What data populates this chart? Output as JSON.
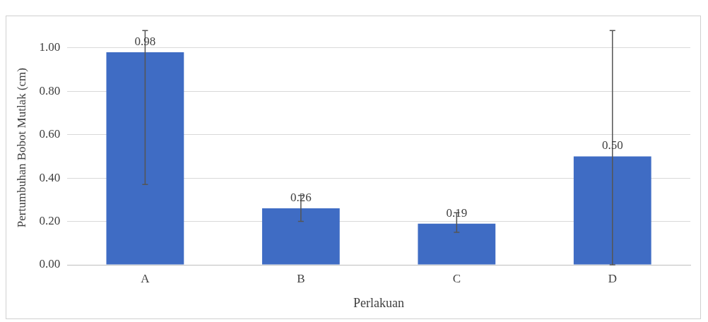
{
  "chart_data": {
    "type": "bar",
    "xlabel": "Perlakuan",
    "ylabel": "Pertumbuhan Bobot Mutlak (cm)",
    "categories": [
      "A",
      "B",
      "C",
      "D"
    ],
    "values": [
      0.98,
      0.26,
      0.19,
      0.5
    ],
    "value_labels": [
      "0.98",
      "0.26",
      "0.19",
      "0.50"
    ],
    "errors": [
      [
        0.37,
        1.08
      ],
      [
        0.2,
        0.32
      ],
      [
        0.15,
        0.24
      ],
      [
        0,
        1.08
      ]
    ],
    "color": "#3f6cc4",
    "ylim": [
      0,
      1.08
    ],
    "yticks": [
      {
        "value": 0,
        "label": "0.00"
      },
      {
        "value": 0.2,
        "label": "0.20"
      },
      {
        "value": 0.4,
        "label": "0.40"
      },
      {
        "value": 0.6,
        "label": "0.60"
      },
      {
        "value": 0.8,
        "label": "0.80"
      },
      {
        "value": 1,
        "label": "1.00"
      }
    ],
    "grid": "y",
    "legend": false
  }
}
